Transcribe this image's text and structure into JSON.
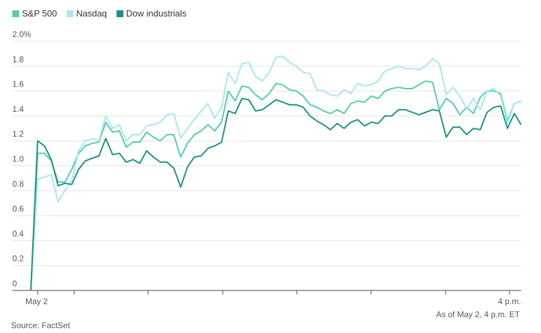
{
  "chart_data": {
    "type": "line",
    "categories": [
      "May 2",
      null,
      null,
      null,
      null,
      null,
      null,
      null,
      null,
      null,
      null,
      null,
      null,
      null,
      null,
      null,
      null,
      null,
      null,
      null,
      null,
      null,
      null,
      null,
      null,
      null,
      null,
      null,
      null,
      null,
      null,
      null,
      null,
      null,
      null,
      null,
      null,
      null,
      null,
      null,
      null,
      null,
      null,
      null,
      null,
      null,
      null,
      null,
      null,
      null,
      null,
      null,
      null,
      null,
      null,
      null,
      null,
      null,
      null,
      null,
      null,
      null,
      null,
      null,
      null,
      null,
      null,
      null,
      null,
      null,
      null,
      null,
      "4 p.m."
    ],
    "series": [
      {
        "name": "S&P 500",
        "color": "#4fcfb0",
        "values": [
          0,
          1.1,
          1.1,
          1.04,
          0.87,
          0.87,
          0.97,
          1.1,
          1.16,
          1.18,
          1.19,
          1.35,
          1.27,
          1.28,
          1.15,
          1.19,
          1.19,
          1.27,
          1.23,
          1.2,
          1.25,
          1.25,
          1.07,
          1.18,
          1.25,
          1.28,
          1.33,
          1.28,
          1.35,
          1.6,
          1.52,
          1.64,
          1.63,
          1.57,
          1.53,
          1.58,
          1.66,
          1.65,
          1.61,
          1.6,
          1.56,
          1.49,
          1.47,
          1.44,
          1.42,
          1.45,
          1.42,
          1.5,
          1.52,
          1.51,
          1.56,
          1.54,
          1.6,
          1.62,
          1.63,
          1.62,
          1.62,
          1.65,
          1.68,
          1.67,
          1.45,
          1.54,
          1.5,
          1.41,
          1.47,
          1.42,
          1.55,
          1.6,
          1.6,
          1.58,
          1.36,
          1.5,
          1.52
        ]
      },
      {
        "name": "Nasdaq",
        "color": "#a8e6f5",
        "values": [
          0,
          0.89,
          0.91,
          0.93,
          0.71,
          0.8,
          0.88,
          1.12,
          1.2,
          1.22,
          1.2,
          1.4,
          1.3,
          1.33,
          1.2,
          1.25,
          1.25,
          1.32,
          1.33,
          1.35,
          1.41,
          1.42,
          1.22,
          1.3,
          1.37,
          1.44,
          1.5,
          1.38,
          1.47,
          1.75,
          1.66,
          1.82,
          1.83,
          1.72,
          1.68,
          1.75,
          1.87,
          1.88,
          1.83,
          1.8,
          1.75,
          1.74,
          1.61,
          1.6,
          1.57,
          1.56,
          1.61,
          1.58,
          1.66,
          1.64,
          1.65,
          1.68,
          1.76,
          1.78,
          1.8,
          1.78,
          1.78,
          1.77,
          1.8,
          1.86,
          1.82,
          1.57,
          1.63,
          1.56,
          1.46,
          1.54,
          1.45,
          1.6,
          1.62,
          1.56,
          1.34,
          1.5,
          1.52
        ]
      },
      {
        "name": "Dow industrials",
        "color": "#1a9188",
        "values": [
          0,
          1.2,
          1.16,
          1.05,
          0.84,
          0.86,
          0.85,
          0.97,
          1.04,
          1.06,
          1.08,
          1.22,
          1.09,
          1.1,
          1.03,
          1.05,
          1.02,
          1.12,
          1.07,
          1.03,
          1.03,
          0.98,
          0.83,
          0.99,
          1.07,
          1.08,
          1.14,
          1.16,
          1.19,
          1.44,
          1.42,
          1.54,
          1.53,
          1.44,
          1.45,
          1.49,
          1.53,
          1.51,
          1.49,
          1.49,
          1.47,
          1.4,
          1.36,
          1.33,
          1.29,
          1.34,
          1.3,
          1.35,
          1.37,
          1.32,
          1.35,
          1.34,
          1.4,
          1.4,
          1.45,
          1.45,
          1.43,
          1.41,
          1.43,
          1.45,
          1.44,
          1.23,
          1.31,
          1.31,
          1.25,
          1.3,
          1.29,
          1.43,
          1.47,
          1.48,
          1.3,
          1.42,
          1.33
        ]
      }
    ],
    "ylim": [
      0,
      2
    ],
    "yticks": [
      0,
      0.2,
      0.4,
      0.6,
      0.8,
      {
        "value": 1,
        "label": "1.0"
      },
      1.2,
      1.4,
      1.6,
      1.8,
      {
        "value": 2,
        "label": "2.0%"
      }
    ],
    "grid": true,
    "legend": "top-left",
    "note": "As of May 2, 4 p.m. ET",
    "source": "Source: FactSet"
  }
}
